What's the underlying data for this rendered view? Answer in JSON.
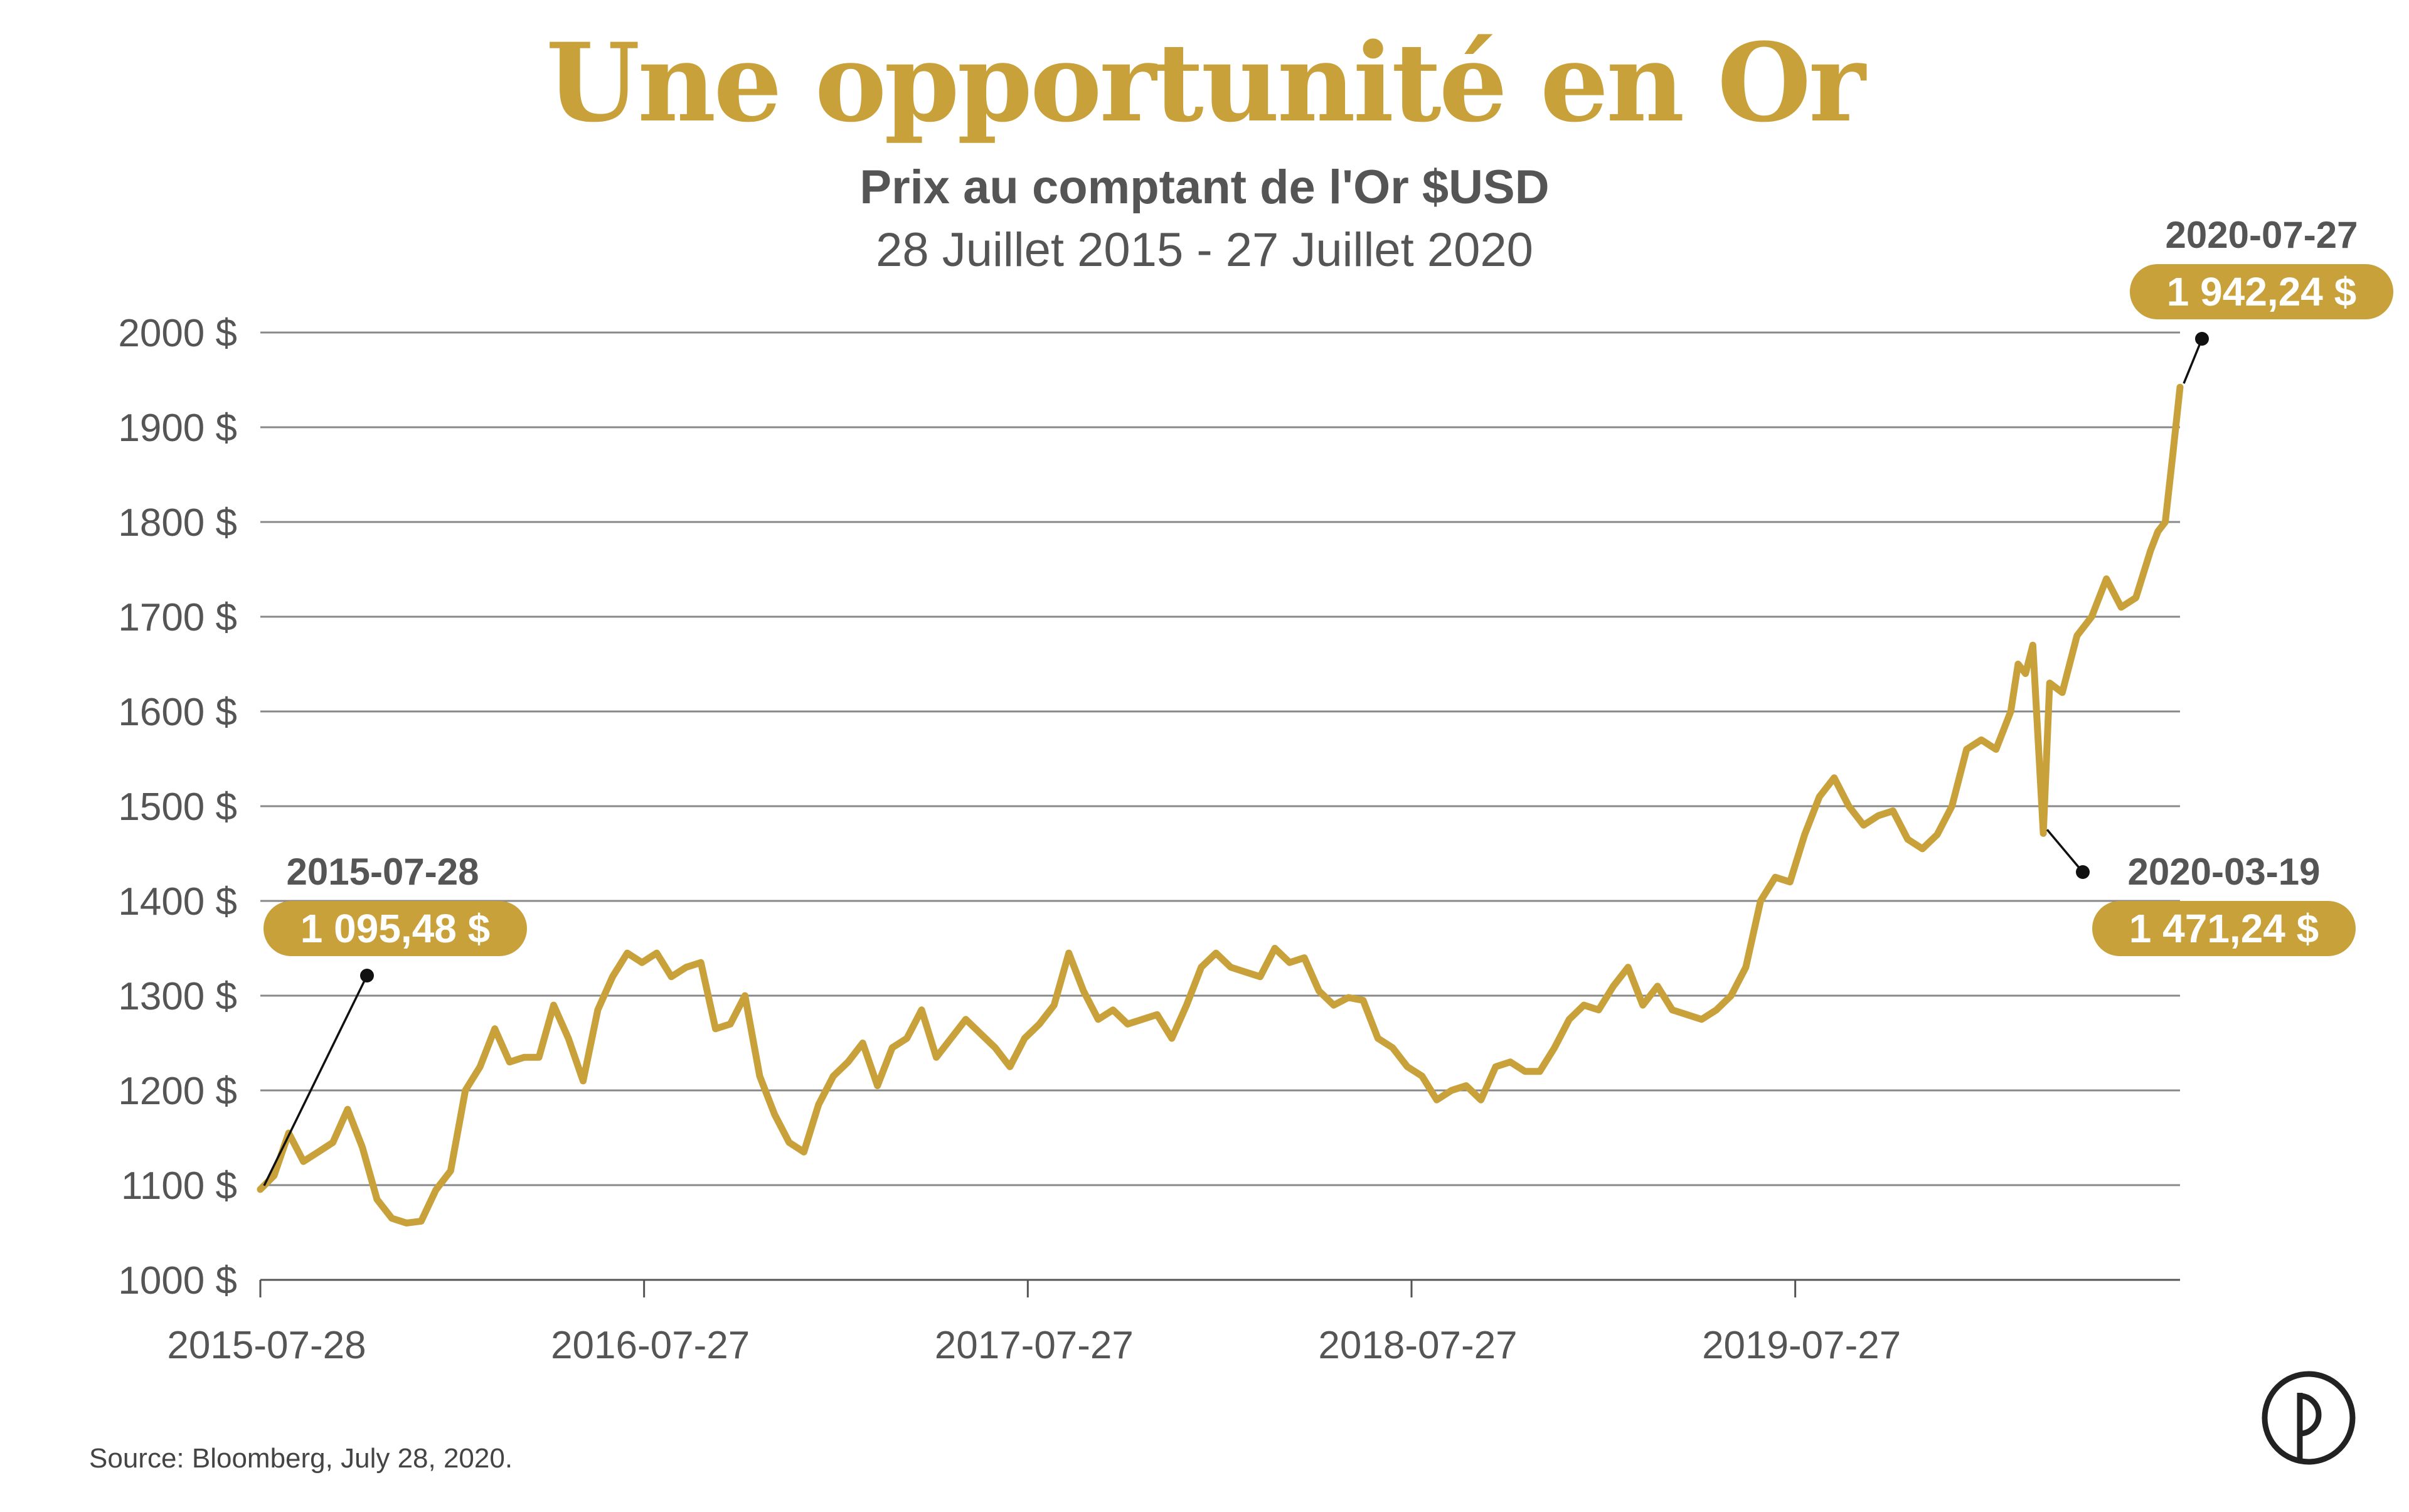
{
  "header": {
    "title": "Une opportunité en Or",
    "subtitle": "Prix au comptant de l'Or $USD",
    "date_range": "28 Juillet 2015 - 27 Juillet 2020"
  },
  "footer": {
    "source": "Source: Bloomberg, July 28, 2020."
  },
  "colors": {
    "gold": "#C9A13B",
    "text": "#555555",
    "grid": "#888888"
  },
  "chart_data": {
    "type": "line",
    "xlabel": "",
    "ylabel": "",
    "grid": true,
    "ylim": [
      1000,
      2000
    ],
    "xlim": [
      "2015-07-28",
      "2020-07-27"
    ],
    "y_ticks": [
      {
        "value": 1000,
        "label": "1000 $"
      },
      {
        "value": 1100,
        "label": "1100 $"
      },
      {
        "value": 1200,
        "label": "1200 $"
      },
      {
        "value": 1300,
        "label": "1300 $"
      },
      {
        "value": 1400,
        "label": "1400 $"
      },
      {
        "value": 1500,
        "label": "1500 $"
      },
      {
        "value": 1600,
        "label": "1600 $"
      },
      {
        "value": 1700,
        "label": "1700 $"
      },
      {
        "value": 1800,
        "label": "1800 $"
      },
      {
        "value": 1900,
        "label": "1900 $"
      },
      {
        "value": 2000,
        "label": "2000 $"
      }
    ],
    "x_ticks": [
      "2015-07-28",
      "2016-07-27",
      "2017-07-27",
      "2018-07-27",
      "2019-07-27"
    ],
    "series": [
      {
        "x": [
          "2015-07-28",
          "2015-08-10",
          "2015-08-24",
          "2015-09-07",
          "2015-09-21",
          "2015-10-05",
          "2015-10-19",
          "2015-11-02",
          "2015-11-16",
          "2015-11-30",
          "2015-12-14",
          "2015-12-28",
          "2016-01-11",
          "2016-01-25",
          "2016-02-08",
          "2016-02-22",
          "2016-03-07",
          "2016-03-21",
          "2016-04-04",
          "2016-04-18",
          "2016-05-02",
          "2016-05-16",
          "2016-05-30",
          "2016-06-13",
          "2016-06-27",
          "2016-07-11",
          "2016-07-25",
          "2016-08-08",
          "2016-08-22",
          "2016-09-05",
          "2016-09-19",
          "2016-10-03",
          "2016-10-17",
          "2016-10-31",
          "2016-11-14",
          "2016-11-28",
          "2016-12-12",
          "2016-12-26",
          "2017-01-09",
          "2017-01-23",
          "2017-02-06",
          "2017-02-20",
          "2017-03-06",
          "2017-03-20",
          "2017-04-03",
          "2017-04-17",
          "2017-05-01",
          "2017-05-15",
          "2017-05-29",
          "2017-06-12",
          "2017-06-26",
          "2017-07-10",
          "2017-07-24",
          "2017-08-07",
          "2017-08-21",
          "2017-09-04",
          "2017-09-18",
          "2017-10-02",
          "2017-10-16",
          "2017-10-30",
          "2017-11-13",
          "2017-11-27",
          "2017-12-11",
          "2017-12-25",
          "2018-01-08",
          "2018-01-22",
          "2018-02-05",
          "2018-02-19",
          "2018-03-05",
          "2018-03-19",
          "2018-04-02",
          "2018-04-16",
          "2018-04-30",
          "2018-05-14",
          "2018-05-28",
          "2018-06-11",
          "2018-06-25",
          "2018-07-09",
          "2018-07-23",
          "2018-08-06",
          "2018-08-20",
          "2018-09-03",
          "2018-09-17",
          "2018-10-01",
          "2018-10-15",
          "2018-10-29",
          "2018-11-12",
          "2018-11-26",
          "2018-12-10",
          "2018-12-24",
          "2019-01-07",
          "2019-01-21",
          "2019-02-04",
          "2019-02-18",
          "2019-03-04",
          "2019-03-18",
          "2019-04-01",
          "2019-04-15",
          "2019-04-29",
          "2019-05-13",
          "2019-05-27",
          "2019-06-10",
          "2019-06-24",
          "2019-07-08",
          "2019-07-22",
          "2019-08-05",
          "2019-08-19",
          "2019-09-02",
          "2019-09-16",
          "2019-09-30",
          "2019-10-14",
          "2019-10-28",
          "2019-11-11",
          "2019-11-25",
          "2019-12-09",
          "2019-12-23",
          "2020-01-06",
          "2020-01-20",
          "2020-02-03",
          "2020-02-17",
          "2020-02-24",
          "2020-03-02",
          "2020-03-09",
          "2020-03-19",
          "2020-03-25",
          "2020-04-06",
          "2020-04-20",
          "2020-05-04",
          "2020-05-18",
          "2020-06-01",
          "2020-06-15",
          "2020-06-29",
          "2020-07-06",
          "2020-07-13",
          "2020-07-20",
          "2020-07-27"
        ],
        "values": [
          1095.48,
          1110,
          1155,
          1125,
          1135,
          1145,
          1180,
          1140,
          1085,
          1065,
          1060,
          1062,
          1095,
          1115,
          1200,
          1225,
          1265,
          1230,
          1235,
          1235,
          1290,
          1255,
          1210,
          1285,
          1320,
          1345,
          1335,
          1345,
          1320,
          1330,
          1335,
          1265,
          1270,
          1300,
          1215,
          1175,
          1145,
          1135,
          1185,
          1215,
          1230,
          1250,
          1205,
          1245,
          1255,
          1285,
          1235,
          1255,
          1275,
          1260,
          1245,
          1225,
          1255,
          1270,
          1290,
          1345,
          1305,
          1275,
          1285,
          1270,
          1275,
          1280,
          1255,
          1290,
          1330,
          1345,
          1330,
          1325,
          1320,
          1350,
          1335,
          1340,
          1305,
          1290,
          1298,
          1295,
          1255,
          1245,
          1225,
          1215,
          1190,
          1200,
          1205,
          1190,
          1225,
          1230,
          1220,
          1220,
          1245,
          1275,
          1290,
          1285,
          1310,
          1330,
          1290,
          1310,
          1285,
          1280,
          1275,
          1285,
          1300,
          1330,
          1400,
          1425,
          1420,
          1470,
          1510,
          1530,
          1500,
          1480,
          1490,
          1495,
          1465,
          1455,
          1470,
          1500,
          1560,
          1570,
          1560,
          1600,
          1650,
          1640,
          1670,
          1471.24,
          1630,
          1620,
          1680,
          1700,
          1740,
          1710,
          1720,
          1770,
          1790,
          1800,
          1870,
          1942.24
        ]
      }
    ],
    "annotations": [
      {
        "date": "2015-07-28",
        "value": "1 095,48 $"
      },
      {
        "date": "2020-03-19",
        "value": "1 471,24 $"
      },
      {
        "date": "2020-07-27",
        "value": "1 942,24 $"
      }
    ]
  }
}
